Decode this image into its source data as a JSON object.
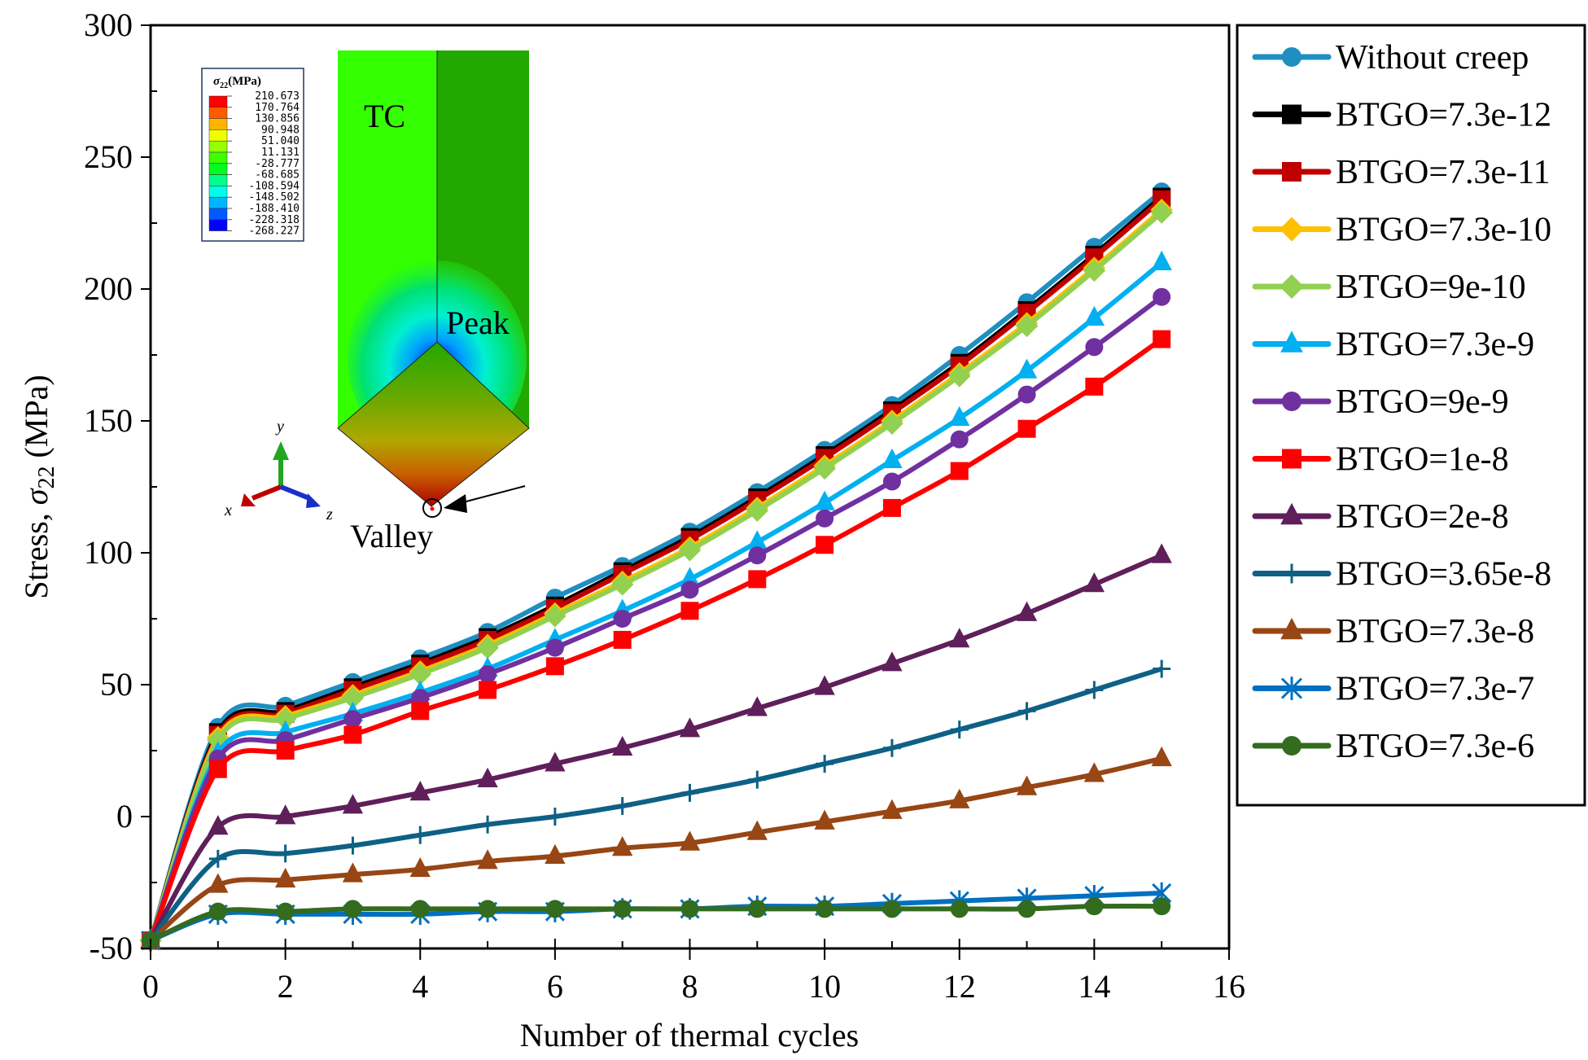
{
  "chart_data": {
    "type": "line",
    "title": "",
    "xlabel": "Number of thermal cycles",
    "ylabel": "Stress, σ22 (MPa)",
    "ylabel_parts": {
      "prefix": "Stress, ",
      "symbol": "σ",
      "subscript": "22",
      "suffix": " (MPa)"
    },
    "xlim": [
      0,
      16
    ],
    "ylim": [
      -50,
      300
    ],
    "x_ticks": [
      0,
      2,
      4,
      6,
      8,
      10,
      12,
      14,
      16
    ],
    "y_ticks": [
      -50,
      0,
      50,
      100,
      150,
      200,
      250,
      300
    ],
    "x_tick_labels": [
      "0",
      "2",
      "4",
      "6",
      "8",
      "10",
      "12",
      "14",
      "16"
    ],
    "y_tick_labels": [
      "-50",
      "0",
      "50",
      "100",
      "150",
      "200",
      "250",
      "300"
    ],
    "grid": false,
    "legend_position": "right-outside",
    "x": [
      0,
      1,
      2,
      3,
      4,
      5,
      6,
      7,
      8,
      9,
      10,
      11,
      12,
      13,
      14,
      15
    ],
    "series": [
      {
        "name": "Without creep",
        "color": "#1f8fc1",
        "marker": "circle",
        "values": [
          -47,
          34,
          42,
          51,
          60,
          70,
          83,
          95,
          108,
          123,
          139,
          156,
          175,
          195,
          216,
          237
        ]
      },
      {
        "name": "BTGO=7.3e-12",
        "color": "#000000",
        "marker": "square",
        "values": [
          -47,
          32,
          40,
          49,
          58,
          68,
          80,
          93,
          106,
          121,
          137,
          154,
          172,
          192,
          213,
          235
        ]
      },
      {
        "name": "BTGO=7.3e-11",
        "color": "#c00000",
        "marker": "square",
        "values": [
          -47,
          31,
          39,
          48,
          57,
          67,
          79,
          92,
          105,
          120,
          136,
          153,
          171,
          191,
          212,
          234
        ]
      },
      {
        "name": "BTGO=7.3e-10",
        "color": "#ffc000",
        "marker": "diamond",
        "values": [
          -47,
          30,
          38,
          46,
          55,
          65,
          77,
          89,
          102,
          117,
          133,
          150,
          168,
          187,
          208,
          230
        ]
      },
      {
        "name": "BTGO=9e-10",
        "color": "#92d050",
        "marker": "diamond",
        "values": [
          -47,
          29,
          37,
          45,
          54,
          64,
          76,
          88,
          101,
          116,
          132,
          149,
          167,
          186,
          207,
          229
        ]
      },
      {
        "name": "BTGO=7.3e-9",
        "color": "#00b0f0",
        "marker": "triangle",
        "values": [
          -47,
          24,
          32,
          39,
          47,
          56,
          67,
          78,
          90,
          104,
          119,
          135,
          151,
          169,
          189,
          210
        ]
      },
      {
        "name": "BTGO=9e-9",
        "color": "#7030a0",
        "marker": "circle",
        "values": [
          -47,
          22,
          29,
          37,
          45,
          54,
          64,
          75,
          86,
          99,
          113,
          127,
          143,
          160,
          178,
          197
        ]
      },
      {
        "name": "BTGO=1e-8",
        "color": "#ff0000",
        "marker": "square",
        "values": [
          -47,
          18,
          25,
          31,
          40,
          48,
          57,
          67,
          78,
          90,
          103,
          117,
          131,
          147,
          163,
          181
        ]
      },
      {
        "name": "BTGO=2e-8",
        "color": "#5e1f5a",
        "marker": "triangle",
        "values": [
          -47,
          -4,
          0,
          4,
          9,
          14,
          20,
          26,
          33,
          41,
          49,
          58,
          67,
          77,
          88,
          99
        ]
      },
      {
        "name": "BTGO=3.65e-8",
        "color": "#0e6085",
        "marker": "plus",
        "values": [
          -47,
          -16,
          -14,
          -11,
          -7,
          -3,
          0,
          4,
          9,
          14,
          20,
          26,
          33,
          40,
          48,
          56
        ]
      },
      {
        "name": "BTGO=7.3e-8",
        "color": "#974614",
        "marker": "triangle",
        "values": [
          -47,
          -26,
          -24,
          -22,
          -20,
          -17,
          -15,
          -12,
          -10,
          -6,
          -2,
          2,
          6,
          11,
          16,
          22
        ]
      },
      {
        "name": "BTGO=7.3e-7",
        "color": "#0070c0",
        "marker": "asterisk",
        "values": [
          -47,
          -37,
          -37,
          -37,
          -37,
          -36,
          -36,
          -35,
          -35,
          -34,
          -34,
          -33,
          -32,
          -31,
          -30,
          -29
        ]
      },
      {
        "name": "BTGO=7.3e-6",
        "color": "#336b1f",
        "marker": "circle",
        "values": [
          -47,
          -36,
          -36,
          -35,
          -35,
          -35,
          -35,
          -35,
          -35,
          -35,
          -35,
          -35,
          -35,
          -35,
          -34,
          -34
        ]
      }
    ]
  },
  "inset": {
    "colorbar_title": "σ22(MPa)",
    "colorbar_title_parts": {
      "symbol": "σ",
      "subscript": "22",
      "suffix": "(MPa)"
    },
    "colorbar_values": [
      "210.673",
      "170.764",
      "130.856",
      "90.948",
      "51.040",
      "11.131",
      "-28.777",
      "-68.685",
      "-108.594",
      "-148.502",
      "-188.410",
      "-228.318",
      "-268.227"
    ],
    "colorbar_colors": [
      "#ff0000",
      "#ff5a00",
      "#ffb400",
      "#f0ff00",
      "#96ff00",
      "#3cff00",
      "#00ff1e",
      "#00ff8c",
      "#00ffe6",
      "#00b4ff",
      "#005aff",
      "#0000ff"
    ],
    "label_tc": "TC",
    "label_peak": "Peak",
    "label_valley": "Valley",
    "axis_x": "x",
    "axis_y": "y",
    "axis_z": "z"
  }
}
